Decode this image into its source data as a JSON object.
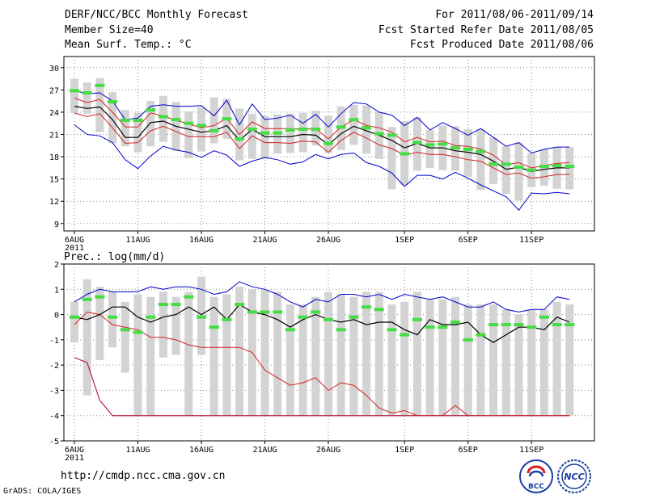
{
  "header": {
    "title": "DERF/NCC/BCC Monthly Forecast",
    "member_size": "Member Size=40",
    "variable1": "Mean Surf. Temp.: °C",
    "period": "For 2011/08/06-2011/09/14",
    "refer_date": "Fcst Started Refer Date 2011/08/05",
    "produced_date": "Fcst Produced Date 2011/08/06"
  },
  "footer": {
    "url": "http://cmdp.ncc.cma.gov.cn",
    "grads": "GrADS: COLA/IGES",
    "logo1_text": "BCC",
    "logo2_text": "NCC"
  },
  "colors": {
    "max": "#0000cc",
    "min": "#0000cc",
    "ens": "#000000",
    "band": "#d42020",
    "obs": "#44dd44",
    "box": "#d3d3d3"
  },
  "chart_data": [
    {
      "type": "line",
      "title": "Mean Surf. Temp.: °C",
      "xlabel": "",
      "ylabel": "°C",
      "ylim": [
        9,
        31
      ],
      "yticks": [
        9,
        12,
        15,
        18,
        21,
        24,
        27,
        30
      ],
      "x_tick_labels": [
        "6AUG",
        "11AUG",
        "16AUG",
        "21AUG",
        "26AUG",
        "1SEP",
        "6SEP",
        "11SEP"
      ],
      "x_tick_index": [
        0,
        5,
        10,
        15,
        20,
        26,
        31,
        36
      ],
      "x_year_label": "2011",
      "series": [
        {
          "name": "max",
          "values": [
            26.9,
            26.5,
            26.6,
            25.5,
            23.0,
            23.2,
            24.8,
            25.0,
            24.8,
            24.8,
            24.9,
            23.5,
            25.6,
            22.3,
            25.1,
            23.0,
            23.2,
            23.6,
            22.5,
            23.7,
            22.0,
            23.8,
            25.3,
            25.1,
            24.0,
            23.6,
            22.2,
            23.3,
            21.6,
            22.6,
            21.8,
            20.9,
            21.8,
            20.6,
            19.4,
            19.9,
            18.5,
            19.0,
            19.3,
            19.3
          ]
        },
        {
          "name": "upper",
          "values": [
            25.9,
            25.3,
            25.7,
            24.0,
            22.0,
            22.0,
            23.9,
            23.5,
            22.9,
            22.4,
            21.9,
            22.2,
            23.2,
            21.0,
            22.7,
            21.8,
            21.8,
            21.8,
            21.7,
            21.8,
            20.4,
            22.0,
            23.0,
            22.2,
            21.9,
            21.3,
            20.0,
            20.6,
            20.0,
            20.1,
            19.5,
            19.4,
            19.0,
            18.2,
            16.9,
            17.2,
            16.5,
            16.8,
            17.1,
            17.2
          ]
        },
        {
          "name": "ensemble",
          "values": [
            24.8,
            24.5,
            24.7,
            23.0,
            20.6,
            20.6,
            22.6,
            22.8,
            22.1,
            21.7,
            21.3,
            21.5,
            22.2,
            20.2,
            21.7,
            20.7,
            20.7,
            20.7,
            21.0,
            20.9,
            19.6,
            21.1,
            22.1,
            21.5,
            20.9,
            20.2,
            19.2,
            19.8,
            19.2,
            19.2,
            18.8,
            18.6,
            18.3,
            17.4,
            16.3,
            16.6,
            16.0,
            16.3,
            16.5,
            16.5
          ]
        },
        {
          "name": "lower",
          "values": [
            23.9,
            23.4,
            23.8,
            21.9,
            19.8,
            19.9,
            21.5,
            22.1,
            21.4,
            20.7,
            20.7,
            20.7,
            21.3,
            19.1,
            20.8,
            19.9,
            19.9,
            19.8,
            20.1,
            20.0,
            18.6,
            20.2,
            21.3,
            20.5,
            19.6,
            19.1,
            18.2,
            18.6,
            18.3,
            18.3,
            18.0,
            17.6,
            17.4,
            16.5,
            15.6,
            15.8,
            15.1,
            15.3,
            15.6,
            15.6
          ]
        },
        {
          "name": "min",
          "values": [
            22.3,
            21.0,
            20.8,
            19.9,
            17.6,
            16.4,
            18.1,
            19.4,
            18.9,
            18.6,
            17.9,
            18.8,
            18.2,
            16.7,
            17.4,
            17.9,
            17.6,
            17.0,
            17.3,
            18.3,
            17.7,
            18.3,
            18.5,
            17.2,
            16.7,
            15.8,
            14.0,
            15.5,
            15.5,
            15.0,
            15.9,
            15.1,
            14.2,
            13.4,
            12.6,
            10.8,
            13.1,
            13.0,
            13.2,
            13.0
          ]
        },
        {
          "name": "obs",
          "values": [
            26.9,
            26.6,
            27.6,
            25.4,
            22.9,
            22.9,
            24.3,
            23.4,
            23.0,
            22.5,
            22.2,
            21.5,
            23.1,
            20.4,
            21.7,
            21.2,
            21.2,
            21.6,
            21.7,
            21.7,
            19.8,
            22.0,
            23.0,
            21.9,
            21.1,
            20.9,
            18.4,
            19.9,
            19.6,
            19.7,
            19.2,
            19.0,
            18.7,
            17.0,
            17.0,
            16.6,
            16.2,
            16.7,
            16.8,
            16.7
          ]
        },
        {
          "name": "box_high",
          "values": [
            28.5,
            28.0,
            28.6,
            26.7,
            24.3,
            23.9,
            25.5,
            26.2,
            25.4,
            24.1,
            24.7,
            26.0,
            25.8,
            24.5,
            23.8,
            23.5,
            23.7,
            23.8,
            23.9,
            24.2,
            23.5,
            24.8,
            25.0,
            24.9,
            24.0,
            22.0,
            22.8,
            23.3,
            21.6,
            22.2,
            22.1,
            21.7,
            21.7,
            20.6,
            19.4,
            19.9,
            18.5,
            19.0,
            19.3,
            19.3
          ]
        },
        {
          "name": "box_low",
          "values": [
            23.9,
            23.8,
            21.3,
            19.8,
            19.4,
            18.6,
            19.4,
            20.0,
            18.8,
            17.8,
            18.7,
            19.8,
            20.4,
            17.5,
            17.7,
            17.7,
            18.4,
            18.5,
            18.6,
            19.5,
            18.5,
            18.9,
            19.6,
            18.4,
            17.7,
            13.6,
            14.2,
            16.1,
            16.5,
            16.2,
            16.1,
            15.3,
            13.5,
            14.3,
            13.0,
            12.1,
            13.9,
            14.1,
            13.7,
            13.6
          ]
        }
      ]
    },
    {
      "type": "line",
      "title": "Prec.: log(mm/d)",
      "xlabel": "",
      "ylabel": "log(mm/d)",
      "ylim": [
        -5,
        2
      ],
      "yticks": [
        -5,
        -4,
        -3,
        -2,
        -1,
        0,
        1,
        2
      ],
      "x_tick_labels": [
        "6AUG",
        "11AUG",
        "16AUG",
        "21AUG",
        "26AUG",
        "1SEP",
        "6SEP",
        "11SEP"
      ],
      "x_tick_index": [
        0,
        5,
        10,
        15,
        20,
        26,
        31,
        36
      ],
      "x_year_label": "2011",
      "series": [
        {
          "name": "max",
          "values": [
            0.5,
            0.8,
            1.0,
            0.9,
            0.9,
            0.9,
            1.1,
            1.0,
            1.1,
            1.1,
            1.0,
            0.8,
            0.9,
            1.3,
            1.1,
            1.0,
            0.8,
            0.5,
            0.3,
            0.6,
            0.5,
            0.8,
            0.8,
            0.7,
            0.8,
            0.6,
            0.8,
            0.7,
            0.6,
            0.7,
            0.5,
            0.3,
            0.3,
            0.5,
            0.2,
            0.1,
            0.2,
            0.2,
            0.7,
            0.6
          ]
        },
        {
          "name": "upper",
          "values": [
            0.0,
            0.3,
            0.5,
            0.4,
            0.5,
            0.4,
            0.6,
            0.7,
            0.7,
            0.6,
            0.6,
            0.4,
            0.5,
            0.8,
            0.6,
            0.5,
            0.4,
            0.2,
            0.0,
            0.2,
            0.1,
            0.3,
            0.3,
            0.3,
            0.3,
            0.1,
            0.2,
            0.2,
            0.2,
            0.2,
            0.1,
            -0.1,
            -0.1,
            0.0,
            -0.2,
            -0.2,
            -0.1,
            -0.1,
            0.2,
            0.1
          ]
        },
        {
          "name": "ensemble",
          "values": [
            -0.1,
            -0.2,
            0.0,
            0.3,
            0.3,
            -0.1,
            -0.3,
            -0.1,
            0.0,
            0.3,
            0.0,
            0.3,
            -0.2,
            0.4,
            0.1,
            0.0,
            -0.2,
            -0.5,
            -0.2,
            0.0,
            -0.2,
            -0.3,
            -0.2,
            -0.4,
            -0.3,
            -0.3,
            -0.6,
            -0.8,
            -0.2,
            -0.4,
            -0.4,
            -0.3,
            -0.8,
            -1.1,
            -0.8,
            -0.5,
            -0.5,
            -0.6,
            -0.1,
            -0.3
          ]
        },
        {
          "name": "lower",
          "values": [
            -0.5,
            -0.7,
            -0.6,
            -0.3,
            -0.3,
            -0.6,
            -0.9,
            -0.6,
            -0.5,
            -0.2,
            -0.6,
            -0.2,
            -0.7,
            -0.1,
            -0.4,
            -0.5,
            -0.7,
            -1.0,
            -0.7,
            -0.5,
            -0.7,
            -0.8,
            -0.7,
            -0.9,
            -0.8,
            -0.8,
            -1.1,
            -1.3,
            -0.7,
            -0.9,
            -0.9,
            -0.8,
            -1.3,
            -1.6,
            -1.3,
            -1.0,
            -1.0,
            -1.1,
            -0.6,
            -0.8
          ]
        },
        {
          "name": "min",
          "values": [
            -1.7,
            -1.9,
            -3.4,
            -4.0,
            -4.0,
            -4.0,
            -4.0,
            -4.0,
            -4.0,
            -4.0,
            -4.0,
            -4.0,
            -4.0,
            -4.0,
            -4.0,
            -4.0,
            -4.0,
            -4.0,
            -4.0,
            -4.0,
            -4.0,
            -4.0,
            -4.0,
            -4.0,
            -4.0,
            -4.0,
            -4.0,
            -4.0,
            -4.0,
            -4.0,
            -4.0,
            -4.0,
            -4.0,
            -4.0,
            -4.0,
            -4.0,
            -4.0,
            -4.0,
            -4.0,
            -4.0
          ]
        },
        {
          "name": "band_lower",
          "values": [
            -1.7,
            -1.9,
            -3.4,
            -4.0,
            -4.0,
            -4.0,
            -4.0,
            -4.0,
            -4.0,
            -4.0,
            -4.0,
            -4.0,
            -4.0,
            -4.0,
            -4.0,
            -4.0,
            -4.0,
            -4.0,
            -4.0,
            -4.0,
            -4.0,
            -4.0,
            -4.0,
            -4.0,
            -4.0,
            -4.0,
            -4.0,
            -4.0,
            -4.0,
            -4.0,
            -4.0,
            -4.0,
            -4.0,
            -4.0,
            -4.0,
            -4.0,
            -4.0,
            -4.0,
            -4.0,
            -4.0
          ]
        },
        {
          "name": "upper_red",
          "values": [
            -0.4,
            0.1,
            0.0,
            -0.4,
            -0.5,
            -0.6,
            -0.9,
            -0.9,
            -1.0,
            -1.2,
            -1.3,
            -1.3,
            -1.3,
            -1.3,
            -1.5,
            -2.2,
            -2.5,
            -2.8,
            -2.7,
            -2.5,
            -3.0,
            -2.7,
            -2.8,
            -3.2,
            -3.7,
            -3.9,
            -3.8,
            -4.0,
            -4.0,
            -4.0,
            -3.6,
            -4.0,
            -4.0,
            -4.0,
            -4.0,
            -4.0,
            -4.0,
            -4.0,
            -4.0,
            -4.0
          ]
        },
        {
          "name": "obs",
          "values": [
            -0.1,
            0.6,
            0.7,
            -0.1,
            -0.6,
            -0.7,
            -0.1,
            0.4,
            0.4,
            0.7,
            -0.1,
            -0.5,
            -0.2,
            0.4,
            0.1,
            0.1,
            0.1,
            -0.6,
            -0.1,
            0.1,
            -0.2,
            -0.6,
            -0.1,
            0.3,
            0.2,
            -0.6,
            -0.8,
            -0.2,
            -0.5,
            -0.5,
            -0.3,
            -1.0,
            -0.8,
            -0.4,
            -0.4,
            -0.4,
            -0.5,
            -0.1,
            -0.4,
            -0.4
          ]
        },
        {
          "name": "box_high",
          "values": [
            0.5,
            1.4,
            1.1,
            0.9,
            0.5,
            0.8,
            0.7,
            0.9,
            0.7,
            0.9,
            1.5,
            0.7,
            0.8,
            1.1,
            1.0,
            1.0,
            0.9,
            0.4,
            0.4,
            0.7,
            0.9,
            0.8,
            0.7,
            0.9,
            0.9,
            0.4,
            0.5,
            0.9,
            0.6,
            0.6,
            0.7,
            0.4,
            0.4,
            0.4,
            0.2,
            0.0,
            0.2,
            0.2,
            0.5,
            0.4
          ]
        },
        {
          "name": "box_low",
          "values": [
            -1.1,
            -3.2,
            -1.8,
            -1.3,
            -2.3,
            -4.0,
            -4.0,
            -1.7,
            -1.6,
            -4.0,
            -1.6,
            -4.0,
            -4.0,
            -4.0,
            -4.0,
            -4.0,
            -4.0,
            -4.0,
            -4.0,
            -4.0,
            -4.0,
            -4.0,
            -4.0,
            -4.0,
            -4.0,
            -4.0,
            -4.0,
            -4.0,
            -4.0,
            -4.0,
            -4.0,
            -4.0,
            -4.0,
            -4.0,
            -4.0,
            -4.0,
            -4.0,
            -4.0,
            -4.0,
            -4.0
          ]
        }
      ]
    }
  ]
}
